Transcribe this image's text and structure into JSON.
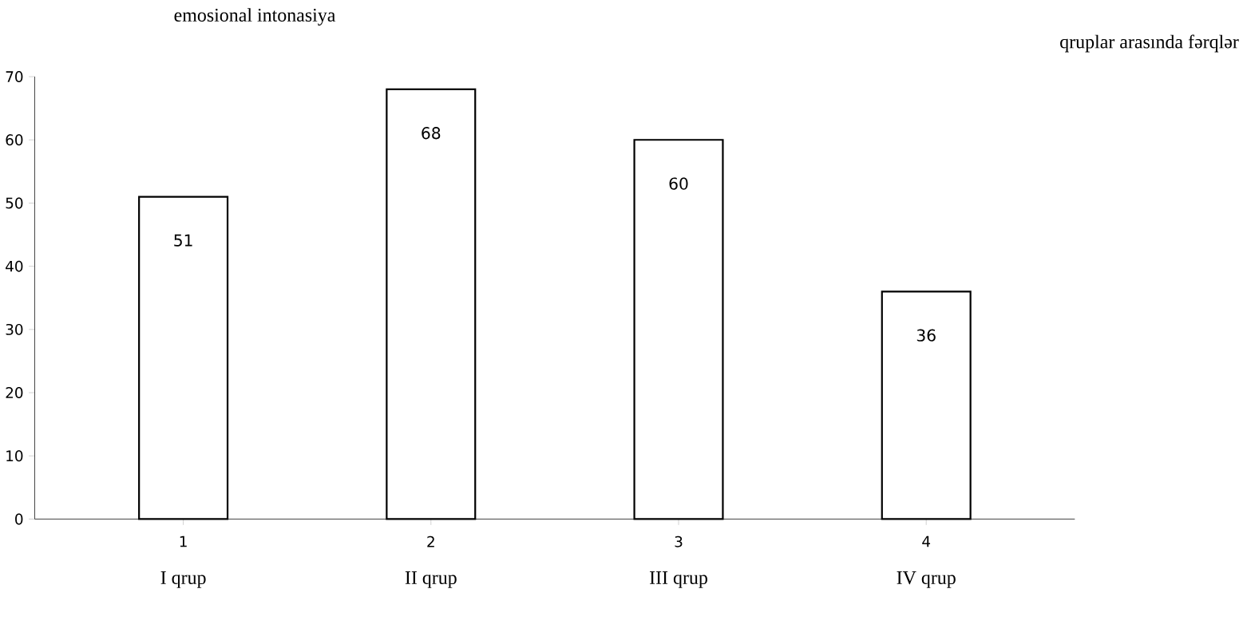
{
  "chart_data": {
    "type": "bar",
    "title": "emosional intonasiya",
    "subtitle": "qruplar arasında fərqlər",
    "categories": [
      "1",
      "2",
      "3",
      "4"
    ],
    "values": [
      51,
      68,
      60,
      36
    ],
    "color": "#ffffff",
    "ylim": [
      0,
      70
    ],
    "yticks": [
      0,
      10,
      20,
      30,
      40,
      50,
      60,
      70
    ],
    "data_labels": true,
    "annotations": [
      "I qrup",
      "II qrup",
      "III qrup",
      "IV qrup"
    ]
  }
}
